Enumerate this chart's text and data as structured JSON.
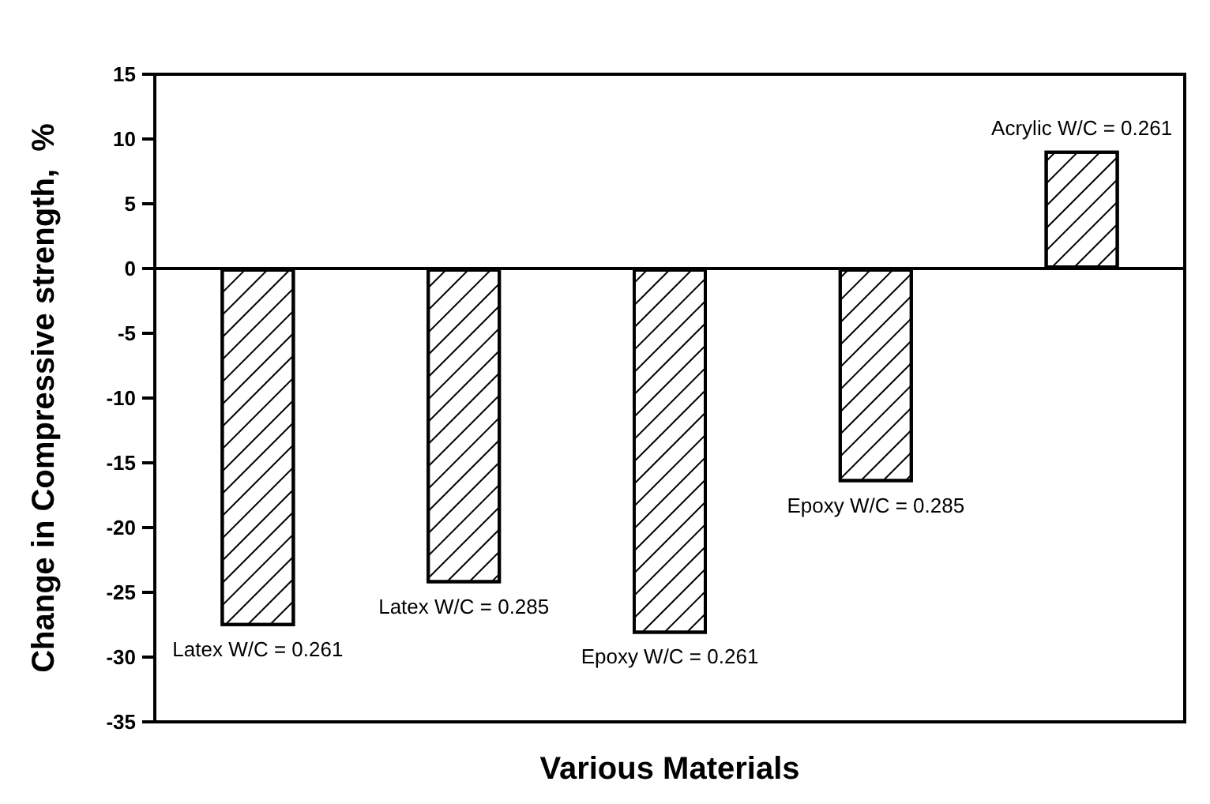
{
  "chart_data": {
    "type": "bar",
    "xlabel": "Various Materials",
    "ylabel": "Change in Compressive strength,  %",
    "categories": [
      "Latex W/C = 0.261",
      "Latex W/C = 0.285",
      "Epoxy W/C = 0.261",
      "Epoxy W/C = 0.285",
      "Acrylic W/C = 0.261"
    ],
    "values": [
      -27.6,
      -24.3,
      -28.2,
      -16.5,
      9.1
    ],
    "color": "#ffffff",
    "ylim": [
      -35,
      15
    ],
    "yticks": [
      -35,
      -30,
      -25,
      -20,
      -15,
      -10,
      -5,
      0,
      5,
      10,
      15
    ],
    "tick_labels": "y"
  }
}
